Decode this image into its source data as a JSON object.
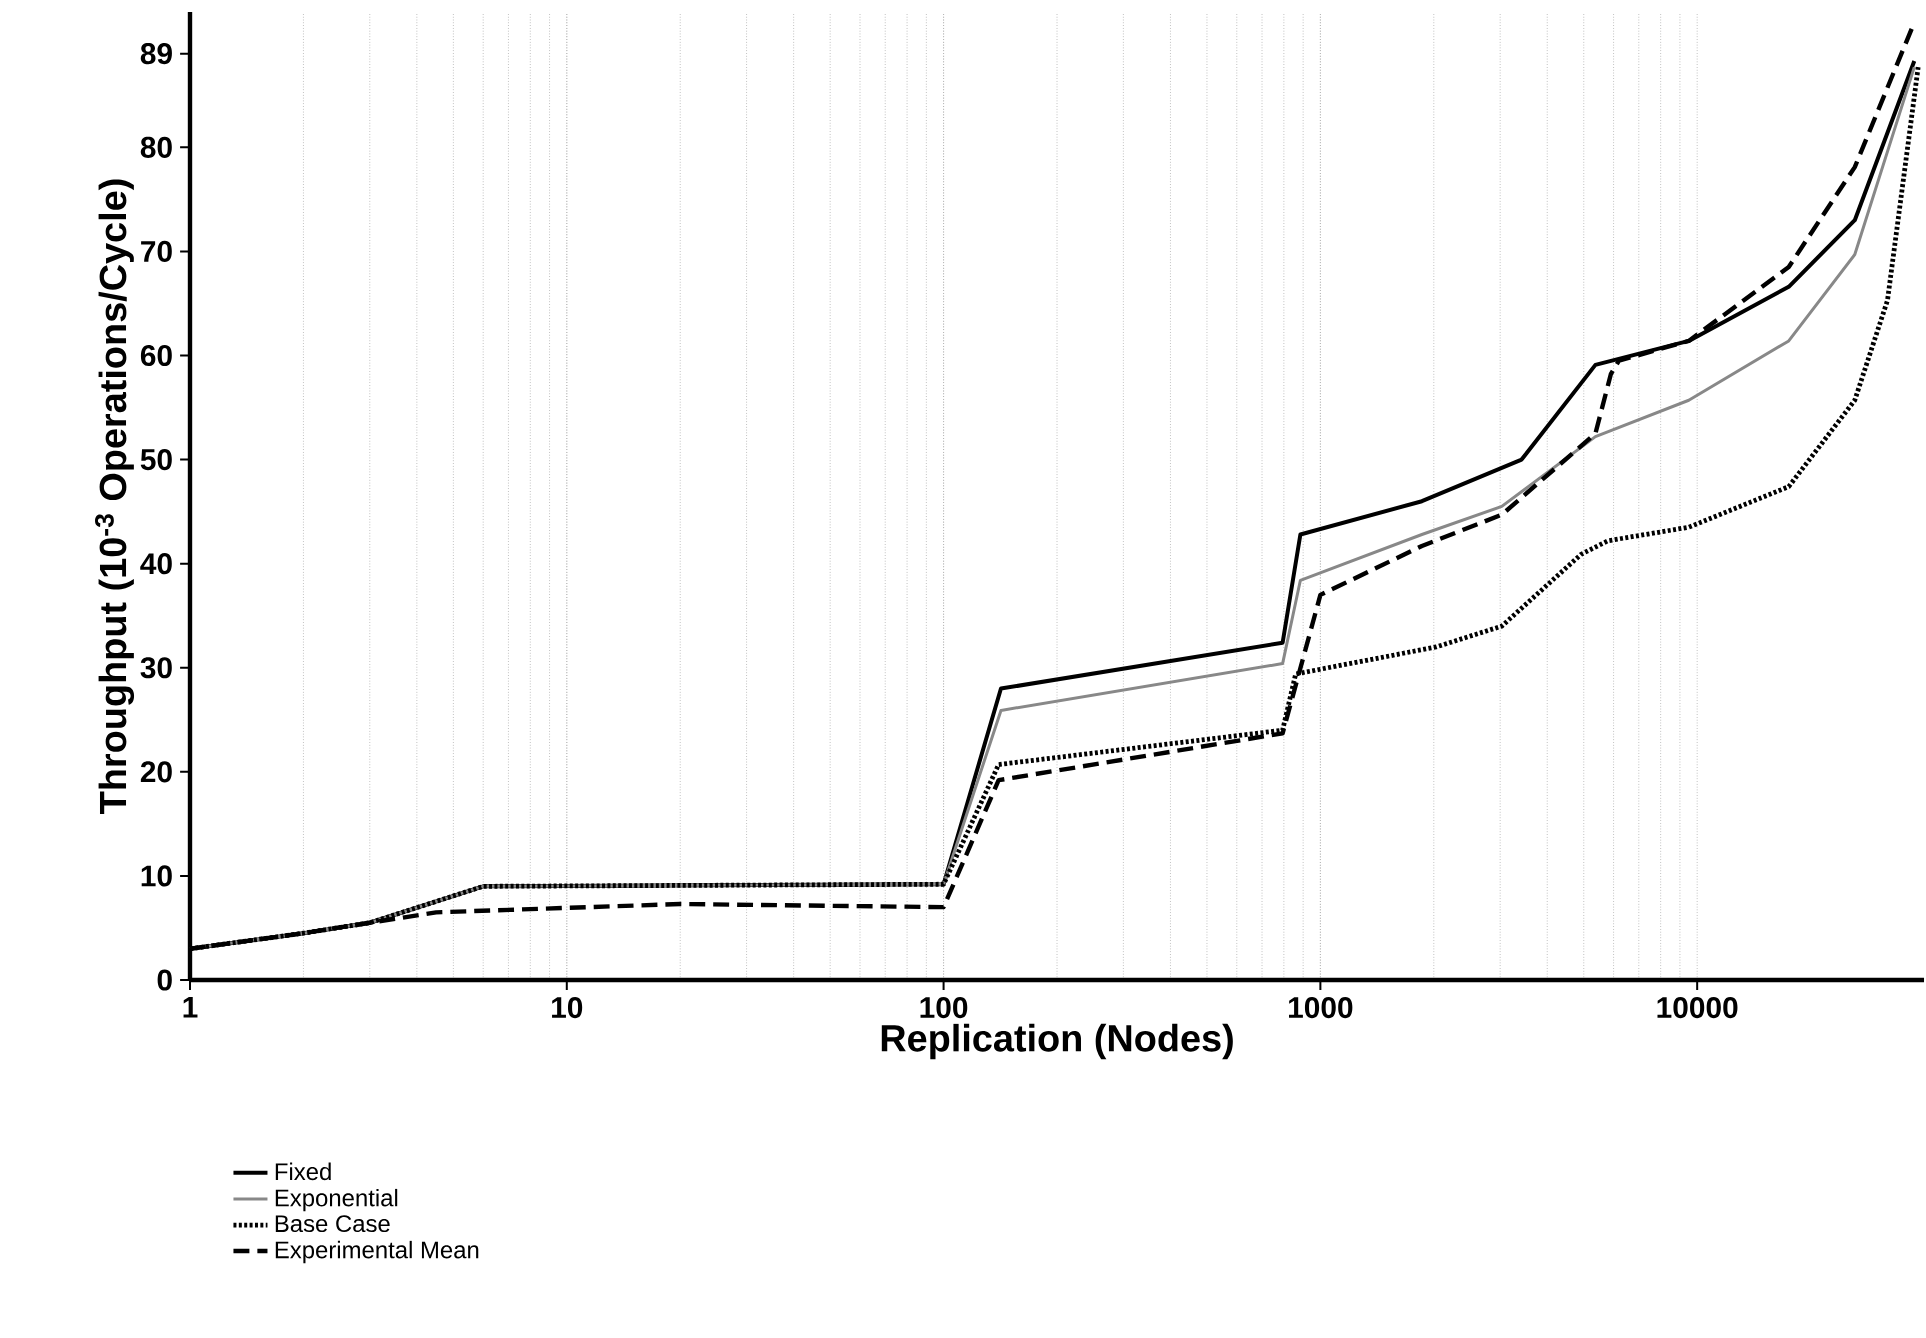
{
  "chart_data": {
    "type": "line",
    "xlabel": "Replication (Nodes)",
    "ylabel": "Throughput (10$^{-3}$ Operations/Cycle)",
    "log": "x",
    "grid": "x",
    "legend": "bottom left",
    "xlim": [
      1,
      40000
    ],
    "ylim": [
      0,
      93
    ],
    "xticks": [
      1,
      10,
      100,
      1000,
      10000
    ],
    "yticks": [
      0,
      10,
      20,
      30,
      40,
      50,
      60,
      70,
      80,
      89
    ],
    "series": [
      {
        "name": "Fixed",
        "color": "#000000",
        "line_style": "solid",
        "x": [
          1,
          2,
          3,
          6,
          100,
          142,
          794,
          885,
          1860,
          3420,
          5370,
          9500,
          17500,
          26200,
          37700
        ],
        "values": [
          3,
          4.5,
          5.5,
          9,
          9.2,
          28,
          32.4,
          42.8,
          46,
          50,
          59.1,
          61.4,
          66.6,
          73,
          88.3
        ]
      },
      {
        "name": "Exponential",
        "color": "#888888",
        "line_style": "solid",
        "x": [
          1,
          2,
          3,
          6,
          100,
          142,
          794,
          885,
          1860,
          3030,
          5370,
          9500,
          17500,
          26200,
          37700
        ],
        "values": [
          3,
          4.5,
          5.5,
          9,
          9.2,
          25.9,
          30.4,
          38.4,
          42.8,
          45.5,
          52.2,
          55.7,
          61.4,
          69.7,
          87.7
        ]
      },
      {
        "name": "Base Case",
        "color": "#000000",
        "line_style": "dotted",
        "x": [
          1,
          2,
          3,
          6,
          100,
          140,
          794,
          860,
          2030,
          3030,
          4920,
          5800,
          9500,
          17500,
          26200,
          32000,
          38600
        ],
        "values": [
          3,
          4.5,
          5.5,
          9,
          9.2,
          20.7,
          24,
          29.4,
          32,
          34,
          40.9,
          42.2,
          43.5,
          47.4,
          55.7,
          65.3,
          87.7
        ]
      },
      {
        "name": "Experimental Mean",
        "color": "#000000",
        "line_style": "dashed",
        "x": [
          1,
          2,
          3,
          4.5,
          20,
          100,
          140,
          794,
          1000,
          1860,
          3030,
          5370,
          5900,
          6200,
          9500,
          17500,
          26200,
          37700
        ],
        "values": [
          3,
          4.5,
          5.5,
          6.5,
          7.3,
          7,
          19.2,
          23.7,
          37,
          41.7,
          44.7,
          52.5,
          58.2,
          59.5,
          61.4,
          68.5,
          78.1,
          92
        ]
      }
    ]
  }
}
